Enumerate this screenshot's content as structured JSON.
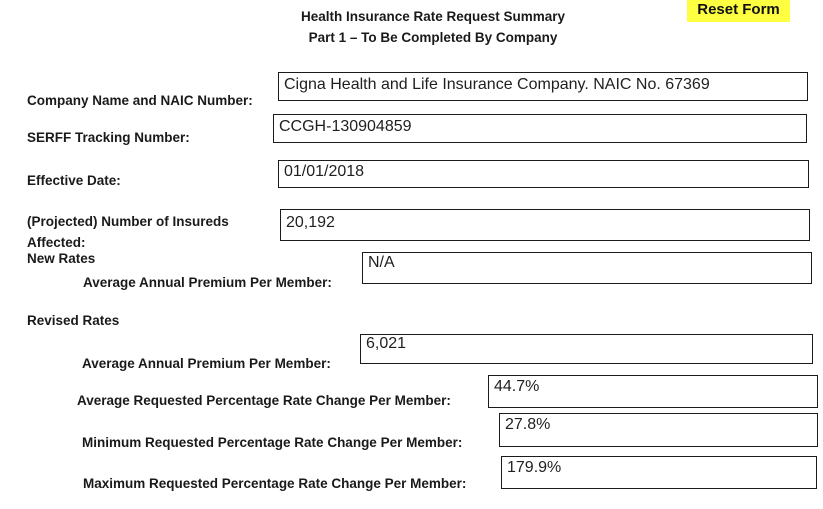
{
  "header": {
    "title_line1": "Health Insurance Rate Request Summary",
    "title_line2": "Part 1 – To Be Completed By Company",
    "reset_button_label": "Reset Form",
    "reset_highlight_color": "#ffff42"
  },
  "fields": {
    "company": {
      "label": "Company Name and NAIC Number:",
      "value": "Cigna Health and Life Insurance Company. NAIC No. 67369"
    },
    "serff": {
      "label": "SERFF Tracking Number:",
      "value": "CCGH-130904859"
    },
    "effective_date": {
      "label": "Effective Date:",
      "value": "01/01/2018"
    },
    "insureds_affected": {
      "label_line1": "(Projected) Number of Insureds",
      "label_line2": "Affected:",
      "value": "20,192"
    },
    "new_rates": {
      "heading": "New Rates",
      "avg_annual_premium": {
        "label": "Average Annual Premium Per Member:",
        "value": "N/A"
      }
    },
    "revised_rates": {
      "heading": "Revised Rates",
      "avg_annual_premium": {
        "label": "Average Annual Premium Per Member:",
        "value": "6,021"
      },
      "avg_pct_change": {
        "label": "Average Requested Percentage Rate Change Per Member:",
        "value": "44.7%"
      },
      "min_pct_change": {
        "label": "Minimum Requested Percentage Rate Change Per Member:",
        "value": "27.8%"
      },
      "max_pct_change": {
        "label": "Maximum Requested Percentage Rate Change Per Member:",
        "value": "179.9%"
      }
    }
  }
}
